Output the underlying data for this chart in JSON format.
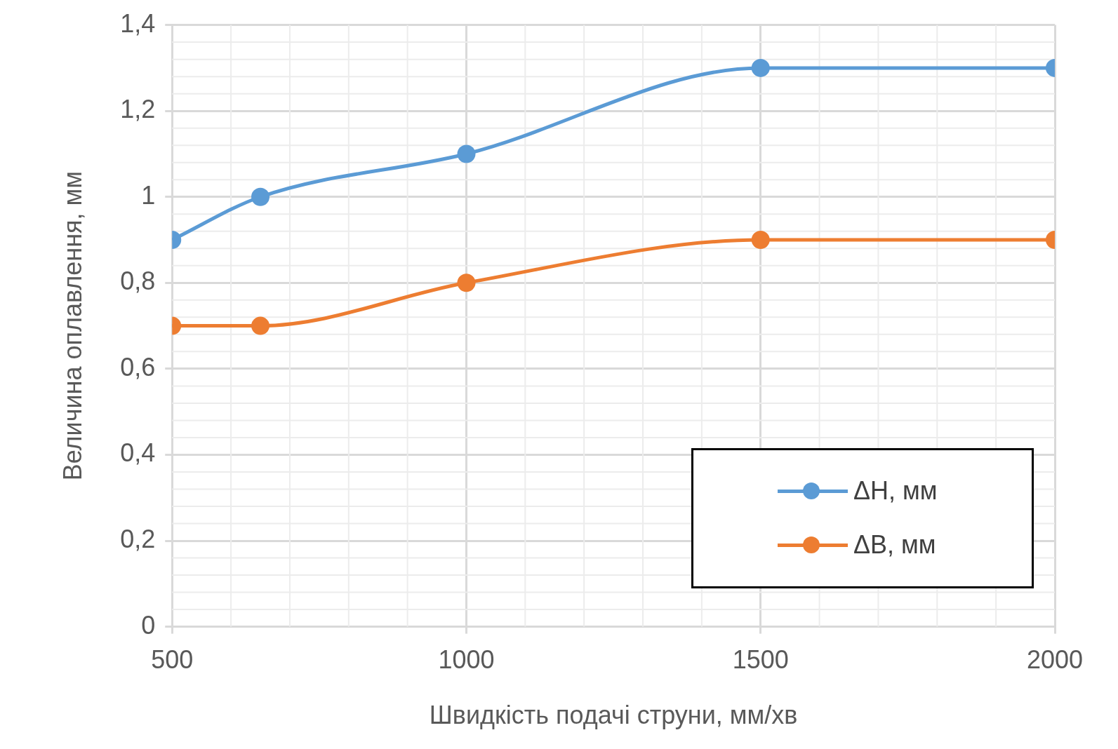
{
  "chart_data": {
    "type": "line",
    "xlabel": "Швидкість подачі струни, мм/хв",
    "ylabel": "Величина оплавлення, мм",
    "x": [
      500,
      650,
      1000,
      1500,
      2000
    ],
    "series": [
      {
        "name": "ΔH, мм",
        "color": "#5b9bd5",
        "values": [
          0.9,
          1.0,
          1.1,
          1.3,
          1.3
        ]
      },
      {
        "name": "ΔB, мм",
        "color": "#ed7d31",
        "values": [
          0.7,
          0.7,
          0.8,
          0.9,
          0.9
        ]
      }
    ],
    "xlim": [
      500,
      2000
    ],
    "xticks": [
      500,
      1000,
      1500,
      2000
    ],
    "ylim": [
      0,
      1.4
    ],
    "yticks": [
      0,
      {
        "value": 0.2,
        "label": "0,2"
      },
      {
        "value": 0.4,
        "label": "0,4"
      },
      {
        "value": 0.6,
        "label": "0,6"
      },
      {
        "value": 0.8,
        "label": "0,8"
      },
      1,
      {
        "value": 1.2,
        "label": "1,2"
      },
      {
        "value": 1.4,
        "label": "1,4"
      }
    ],
    "grid": true,
    "legend": "bottom right",
    "marker": "circle",
    "line_style": "solid"
  }
}
